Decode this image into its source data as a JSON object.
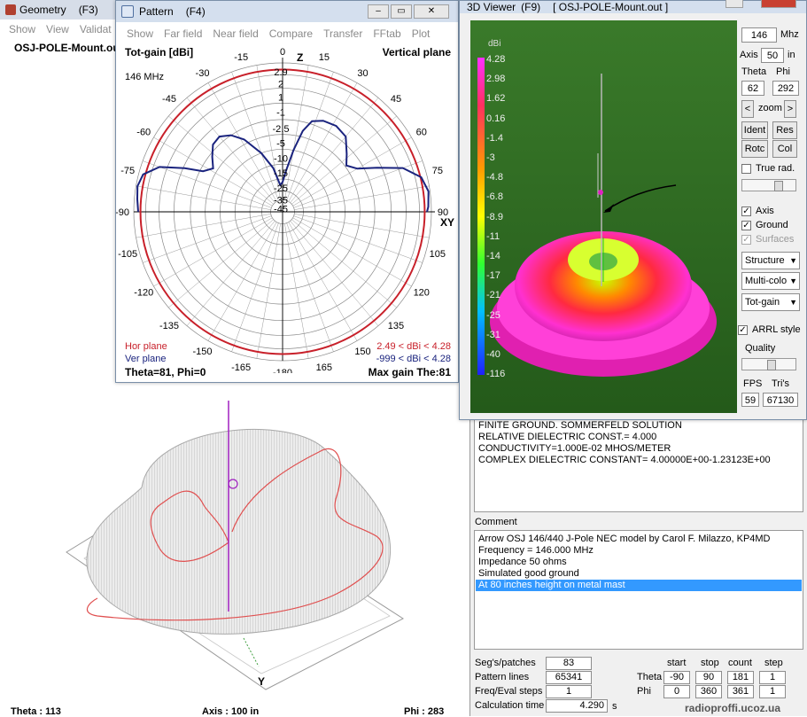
{
  "geometry": {
    "title": "Geometry",
    "key": "(F3)",
    "menu": [
      "Show",
      "View",
      "Validat"
    ],
    "file": "OSJ-POLE-Mount.ou",
    "status": {
      "theta": "Theta : 113",
      "axis": "Axis : 100 in",
      "phi": "Phi : 283"
    },
    "axis_label": "Y"
  },
  "pattern": {
    "title": "Pattern",
    "key": "(F4)",
    "menu": [
      "Show",
      "Far field",
      "Near field",
      "Compare",
      "Transfer",
      "FFtab",
      "Plot"
    ],
    "header_left": "Tot-gain [dBi]",
    "header_right": "Vertical plane",
    "freq": "146 MHz",
    "z_label": "Z",
    "xy_label": "XY",
    "angle_labels_left": [
      "-15",
      "-30",
      "-45",
      "-60",
      "-75",
      "-90",
      "-105",
      "-120",
      "-135",
      "-150",
      "-165"
    ],
    "angle_labels_right": [
      "15",
      "30",
      "45",
      "60",
      "75",
      "90",
      "105",
      "120",
      "135",
      "150",
      "165"
    ],
    "angle_top": "0",
    "angle_bottom": "-180",
    "ring_labels": [
      "2.9",
      "2",
      "1",
      "-1",
      "-2.5",
      "-5",
      "-10",
      "-15",
      "-25",
      "-35",
      "-45"
    ],
    "legend_hor": "Hor plane",
    "legend_ver": "Ver plane",
    "hor_range": "2.49 < dBi < 4.28",
    "ver_range": "-999 < dBi < 4.28",
    "footer_left": "Theta=81, Phi=0",
    "footer_right": "Max gain The:81",
    "colors": {
      "hor": "#c8202a",
      "ver": "#1a237e"
    }
  },
  "viewer3d": {
    "title": "3D Viewer",
    "key": "(F9)",
    "file": "[ OSJ-POLE-Mount.out ]",
    "scale_unit": "dBi",
    "scale_values": [
      "4.28",
      "2.98",
      "1.62",
      "0.16",
      "-1.4",
      "-3",
      "-4.8",
      "-6.8",
      "-8.9",
      "-11",
      "-14",
      "-17",
      "-21",
      "-25",
      "-31",
      "-40",
      "-116"
    ],
    "freq_value": "146",
    "freq_unit": "Mhz",
    "axis_label": "Axis",
    "axis_value": "50",
    "axis_unit": "in",
    "theta_label": "Theta",
    "phi_label": "Phi",
    "theta_value": "62",
    "phi_value": "292",
    "zoom_label": "zoom",
    "zoom_left": "<",
    "zoom_right": ">",
    "buttons": [
      "Ident",
      "Res",
      "Rotc",
      "Col"
    ],
    "true_rad": "True rad.",
    "chk_axis": "Axis",
    "chk_ground": "Ground",
    "chk_surfaces": "Surfaces",
    "dropdowns": [
      "Structure",
      "Multi-colo",
      "Tot-gain"
    ],
    "arrl": "ARRL style",
    "quality": "Quality",
    "fps_label": "FPS",
    "tris_label": "Tri's",
    "fps_value": "59",
    "tris_value": "67130",
    "ground_color": "#2e6b22"
  },
  "info": {
    "lines": [
      "FINITE GROUND.  SOMMERFELD SOLUTION",
      "RELATIVE DIELECTRIC CONST.=  4.000",
      "CONDUCTIVITY=1.000E-02 MHOS/METER",
      "COMPLEX DIELECTRIC CONSTANT= 4.00000E+00-1.23123E+00"
    ]
  },
  "comment": {
    "label": "Comment",
    "lines": [
      "Arrow OSJ 146/440 J-Pole NEC model by Carol F. Milazzo, KP4MD",
      "Frequency = 146.000 MHz",
      "Impedance 50 ohms",
      "Simulated good ground",
      "At 80 inches height on metal mast"
    ],
    "highlight_color": "#3399ff"
  },
  "calc": {
    "segs_label": "Seg's/patches",
    "segs_value": "83",
    "pattern_label": "Pattern lines",
    "pattern_value": "65341",
    "freq_label": "Freq/Eval steps",
    "freq_value": "1",
    "time_label": "Calculation time",
    "time_value": "4.290",
    "time_unit": "s",
    "headers": [
      "start",
      "stop",
      "count",
      "step"
    ],
    "theta_label": "Theta",
    "phi_label": "Phi",
    "theta_row": [
      "-90",
      "90",
      "181",
      "1"
    ],
    "phi_row": [
      "0",
      "360",
      "361",
      "1"
    ]
  },
  "watermark": "radioproffi.ucoz.ua"
}
